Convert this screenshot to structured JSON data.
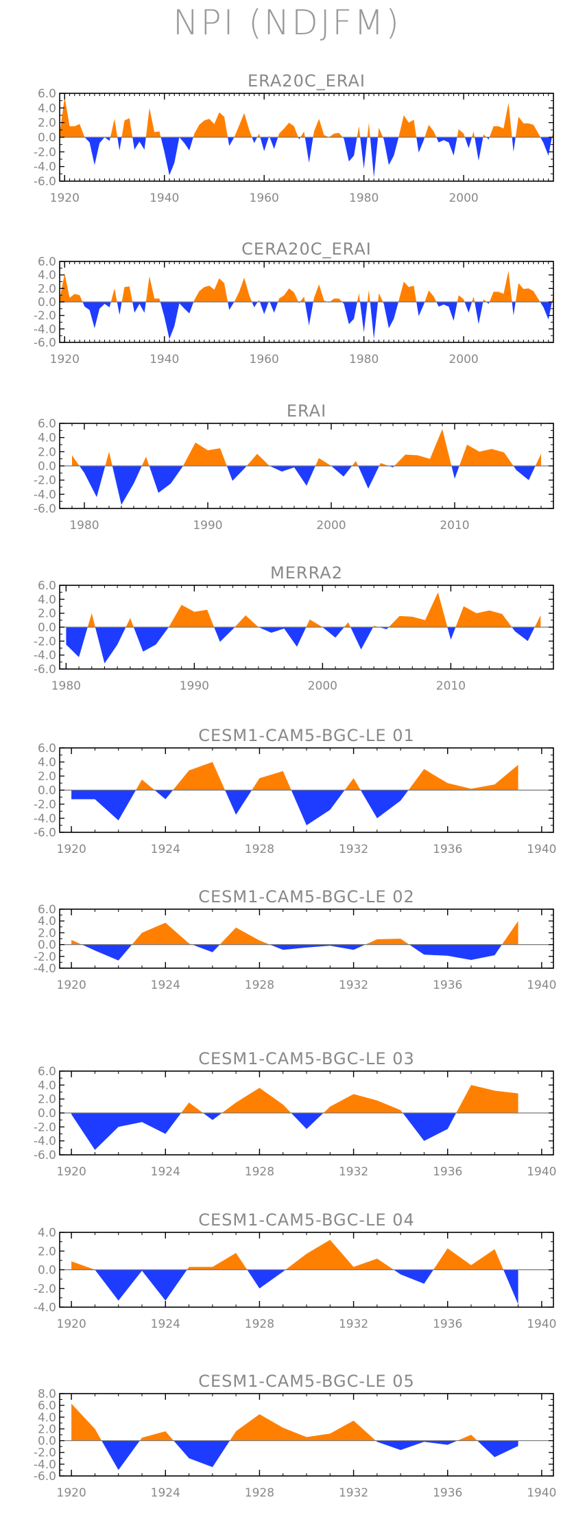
{
  "title": "NPI (NDJFM)",
  "colors": {
    "positive": "#ff8000",
    "negative": "#1e3cff",
    "axis": "#000000",
    "label": "#888888"
  },
  "chart_data": [
    {
      "type": "area",
      "title": "ERA20C_ERAI",
      "xlim": [
        1919,
        2018
      ],
      "ylim": [
        -6,
        6
      ],
      "xticks": [
        1920,
        1940,
        1960,
        1980,
        2000
      ],
      "yticks": [
        "6.0",
        "4.0",
        "2.0",
        "0.0",
        "-2.0",
        "-4.0",
        "-6.0"
      ],
      "x": [
        1919,
        1920,
        1921,
        1922,
        1923,
        1924,
        1925,
        1926,
        1927,
        1928,
        1929,
        1930,
        1931,
        1932,
        1933,
        1934,
        1935,
        1936,
        1937,
        1938,
        1939,
        1940,
        1941,
        1942,
        1943,
        1944,
        1945,
        1946,
        1947,
        1948,
        1949,
        1950,
        1951,
        1952,
        1953,
        1954,
        1955,
        1956,
        1957,
        1958,
        1959,
        1960,
        1961,
        1962,
        1963,
        1964,
        1965,
        1966,
        1967,
        1968,
        1969,
        1970,
        1971,
        1972,
        1973,
        1974,
        1975,
        1976,
        1977,
        1978,
        1979,
        1980,
        1981,
        1982,
        1983,
        1984,
        1985,
        1986,
        1987,
        1988,
        1989,
        1990,
        1991,
        1992,
        1993,
        1994,
        1995,
        1996,
        1997,
        1998,
        1999,
        2000,
        2001,
        2002,
        2003,
        2004,
        2005,
        2006,
        2007,
        2008,
        2009,
        2010,
        2011,
        2012,
        2013,
        2014,
        2015,
        2016,
        2017,
        2018
      ],
      "values": [
        0.5,
        5.5,
        1.5,
        1.5,
        1.8,
        0.0,
        -0.7,
        -3.8,
        -0.8,
        0.0,
        -0.5,
        2.5,
        -1.8,
        2.3,
        2.6,
        -1.7,
        -0.6,
        -1.7,
        4.0,
        0.7,
        0.8,
        -2.0,
        -5.2,
        -3.5,
        0.0,
        -0.8,
        -1.8,
        0.5,
        1.7,
        2.3,
        2.5,
        1.8,
        3.4,
        2.8,
        -1.2,
        0.0,
        1.6,
        3.3,
        1.0,
        -0.8,
        0.5,
        -1.9,
        0.2,
        -1.6,
        0.5,
        1.2,
        2.0,
        1.5,
        -0.3,
        0.8,
        -3.5,
        0.8,
        2.5,
        0.3,
        0.0,
        0.5,
        0.6,
        -0.2,
        -3.3,
        -2.5,
        1.5,
        -4.3,
        2.0,
        -5.5,
        1.3,
        -0.3,
        -3.8,
        -2.5,
        0.1,
        3.0,
        2.0,
        2.4,
        -2.1,
        -0.4,
        1.7,
        0.8,
        -0.7,
        -0.4,
        -0.7,
        -2.5,
        1.1,
        0.5,
        -1.5,
        0.8,
        -3.2,
        0.4,
        -0.3,
        1.5,
        1.5,
        1.2,
        4.7,
        -2.0,
        2.8,
        1.9,
        1.9,
        1.7,
        0.5,
        -0.8,
        -2.5,
        1.0
      ]
    },
    {
      "type": "area",
      "title": "CERA20C_ERAI",
      "xlim": [
        1919,
        2018
      ],
      "ylim": [
        -6,
        6
      ],
      "xticks": [
        1920,
        1940,
        1960,
        1980,
        2000
      ],
      "yticks": [
        "6.0",
        "4.0",
        "2.0",
        "0.0",
        "-2.0",
        "-4.0",
        "-6.0"
      ],
      "x": [
        1919,
        1920,
        1921,
        1922,
        1923,
        1924,
        1925,
        1926,
        1927,
        1928,
        1929,
        1930,
        1931,
        1932,
        1933,
        1934,
        1935,
        1936,
        1937,
        1938,
        1939,
        1940,
        1941,
        1942,
        1943,
        1944,
        1945,
        1946,
        1947,
        1948,
        1949,
        1950,
        1951,
        1952,
        1953,
        1954,
        1955,
        1956,
        1957,
        1958,
        1959,
        1960,
        1961,
        1962,
        1963,
        1964,
        1965,
        1966,
        1967,
        1968,
        1969,
        1970,
        1971,
        1972,
        1973,
        1974,
        1975,
        1976,
        1977,
        1978,
        1979,
        1980,
        1981,
        1982,
        1983,
        1984,
        1985,
        1986,
        1987,
        1988,
        1989,
        1990,
        1991,
        1992,
        1993,
        1994,
        1995,
        1996,
        1997,
        1998,
        1999,
        2000,
        2001,
        2002,
        2003,
        2004,
        2005,
        2006,
        2007,
        2008,
        2009,
        2010,
        2011,
        2012,
        2013,
        2014,
        2015,
        2016,
        2017,
        2018
      ],
      "values": [
        0.5,
        4.2,
        0.6,
        1.2,
        1.0,
        -0.7,
        -1.2,
        -3.9,
        -1.0,
        -0.3,
        -0.8,
        2.0,
        -1.9,
        2.2,
        2.3,
        -1.6,
        -0.3,
        -1.6,
        3.8,
        0.5,
        0.5,
        -2.2,
        -5.5,
        -3.6,
        -0.2,
        -1.0,
        -1.7,
        0.3,
        1.6,
        2.2,
        2.4,
        1.8,
        3.5,
        2.8,
        -1.2,
        0.0,
        1.5,
        3.6,
        1.0,
        -0.8,
        0.3,
        -1.8,
        0.2,
        -1.6,
        0.5,
        1.0,
        2.0,
        1.4,
        -0.2,
        0.8,
        -3.5,
        0.6,
        2.6,
        0.2,
        -0.1,
        0.5,
        0.5,
        -0.3,
        -3.3,
        -2.5,
        1.3,
        -4.5,
        1.8,
        -5.5,
        1.3,
        -0.3,
        -3.9,
        -2.5,
        0.2,
        3.0,
        2.2,
        2.4,
        -2.1,
        -0.4,
        1.7,
        0.8,
        -0.7,
        -0.4,
        -0.7,
        -2.8,
        1.0,
        0.4,
        -1.6,
        0.8,
        -3.3,
        0.4,
        -0.3,
        1.5,
        1.5,
        1.2,
        4.6,
        -2.0,
        2.8,
        1.9,
        2.0,
        1.6,
        0.4,
        -0.8,
        -2.6,
        1.0
      ]
    },
    {
      "type": "area",
      "title": "ERAI",
      "xlim": [
        1978,
        2018
      ],
      "ylim": [
        -6,
        6
      ],
      "xticks": [
        1980,
        1990,
        2000,
        2010
      ],
      "yticks": [
        "6.0",
        "4.0",
        "2.0",
        "0.0",
        "-2.0",
        "-4.0",
        "-6.0"
      ],
      "x": [
        1979,
        1980,
        1981,
        1982,
        1983,
        1984,
        1985,
        1986,
        1987,
        1988,
        1989,
        1990,
        1991,
        1992,
        1993,
        1994,
        1995,
        1996,
        1997,
        1998,
        1999,
        2000,
        2001,
        2002,
        2003,
        2004,
        2005,
        2006,
        2007,
        2008,
        2009,
        2010,
        2011,
        2012,
        2013,
        2014,
        2015,
        2016,
        2017
      ],
      "values": [
        1.5,
        -1.0,
        -4.4,
        2.0,
        -5.5,
        -2.5,
        1.3,
        -3.8,
        -2.5,
        0.0,
        3.3,
        2.2,
        2.5,
        -2.1,
        -0.3,
        1.7,
        0.0,
        -0.8,
        -0.2,
        -2.8,
        1.1,
        0.0,
        -1.5,
        0.7,
        -3.2,
        0.4,
        -0.2,
        1.6,
        1.5,
        1.0,
        5.2,
        -1.8,
        3.0,
        2.0,
        2.4,
        1.9,
        -0.6,
        -2.0,
        1.7
      ]
    },
    {
      "type": "area",
      "title": "MERRA2",
      "xlim": [
        1979.5,
        2018
      ],
      "ylim": [
        -6,
        6
      ],
      "xticks": [
        1980,
        1990,
        2000,
        2010
      ],
      "yticks": [
        "6.0",
        "4.0",
        "2.0",
        "0.0",
        "-2.0",
        "-4.0",
        "-6.0"
      ],
      "x": [
        1980,
        1981,
        1982,
        1983,
        1984,
        1985,
        1986,
        1987,
        1988,
        1989,
        1990,
        1991,
        1992,
        1993,
        1994,
        1995,
        1996,
        1997,
        1998,
        1999,
        2000,
        2001,
        2002,
        2003,
        2004,
        2005,
        2006,
        2007,
        2008,
        2009,
        2010,
        2011,
        2012,
        2013,
        2014,
        2015,
        2016,
        2017
      ],
      "values": [
        -2.5,
        -4.3,
        2.0,
        -5.2,
        -2.5,
        1.3,
        -3.5,
        -2.5,
        0.0,
        3.2,
        2.2,
        2.5,
        -2.1,
        -0.3,
        1.7,
        0.0,
        -0.8,
        -0.2,
        -2.8,
        1.1,
        0.0,
        -1.5,
        0.7,
        -3.2,
        0.2,
        -0.3,
        1.6,
        1.5,
        1.0,
        5.0,
        -1.8,
        3.0,
        2.0,
        2.4,
        1.9,
        -0.6,
        -2.0,
        1.7
      ]
    },
    {
      "type": "area",
      "title": "CESM1-CAM5-BGC-LE 01",
      "xlim": [
        1919.5,
        1940.5
      ],
      "ylim": [
        -6,
        6
      ],
      "xticks": [
        1920,
        1924,
        1928,
        1932,
        1936,
        1940
      ],
      "yticks": [
        "6.0",
        "4.0",
        "2.0",
        "0.0",
        "-2.0",
        "-4.0",
        "-6.0"
      ],
      "x": [
        1920,
        1921,
        1922,
        1923,
        1924,
        1925,
        1926,
        1927,
        1928,
        1929,
        1930,
        1931,
        1932,
        1933,
        1934,
        1935,
        1936,
        1937,
        1938,
        1939
      ],
      "values": [
        -1.3,
        -1.3,
        -4.3,
        1.5,
        -1.3,
        2.8,
        4.0,
        -3.5,
        1.7,
        2.7,
        -5.0,
        -2.8,
        1.7,
        -4.0,
        -1.5,
        3.0,
        1.0,
        0.2,
        0.8,
        3.6
      ]
    },
    {
      "type": "area",
      "title": "CESM1-CAM5-BGC-LE 02",
      "xlim": [
        1919.5,
        1940.5
      ],
      "ylim": [
        -4,
        6
      ],
      "xticks": [
        1920,
        1924,
        1928,
        1932,
        1936,
        1940
      ],
      "yticks": [
        "6.0",
        "4.0",
        "2.0",
        "0.0",
        "-2.0",
        "-4.0"
      ],
      "x": [
        1920,
        1921,
        1922,
        1923,
        1924,
        1925,
        1926,
        1927,
        1928,
        1929,
        1930,
        1931,
        1932,
        1933,
        1934,
        1935,
        1936,
        1937,
        1938,
        1939
      ],
      "values": [
        0.8,
        -1.0,
        -2.7,
        2.0,
        3.7,
        0.2,
        -1.3,
        2.9,
        0.7,
        -0.9,
        -0.5,
        -0.2,
        -0.9,
        0.9,
        1.0,
        -1.7,
        -1.9,
        -2.6,
        -1.8,
        4.0
      ]
    },
    {
      "type": "area",
      "title": "CESM1-CAM5-BGC-LE 03",
      "xlim": [
        1919.5,
        1940.5
      ],
      "ylim": [
        -6,
        6
      ],
      "xticks": [
        1920,
        1924,
        1928,
        1932,
        1936,
        1940
      ],
      "yticks": [
        "6.0",
        "4.0",
        "2.0",
        "0.0",
        "-2.0",
        "-4.0",
        "-6.0"
      ],
      "x": [
        1920,
        1921,
        1922,
        1923,
        1924,
        1925,
        1926,
        1927,
        1928,
        1929,
        1930,
        1931,
        1932,
        1933,
        1934,
        1935,
        1936,
        1937,
        1938,
        1939
      ],
      "values": [
        -0.2,
        -5.3,
        -2.0,
        -1.3,
        -3.0,
        1.5,
        -1.0,
        1.5,
        3.6,
        1.2,
        -2.3,
        0.9,
        2.7,
        1.8,
        0.4,
        -4.0,
        -2.3,
        4.0,
        3.2,
        2.8
      ]
    },
    {
      "type": "area",
      "title": "CESM1-CAM5-BGC-LE 04",
      "xlim": [
        1919.5,
        1940.5
      ],
      "ylim": [
        -4,
        4
      ],
      "xticks": [
        1920,
        1924,
        1928,
        1932,
        1936,
        1940
      ],
      "yticks": [
        "4.0",
        "2.0",
        "0.0",
        "-2.0",
        "-4.0"
      ],
      "x": [
        1920,
        1921,
        1922,
        1923,
        1924,
        1925,
        1926,
        1927,
        1928,
        1929,
        1930,
        1931,
        1932,
        1933,
        1934,
        1935,
        1936,
        1937,
        1938,
        1939
      ],
      "values": [
        0.9,
        0.0,
        -3.3,
        -0.1,
        -3.3,
        0.3,
        0.3,
        1.8,
        -2.0,
        -0.2,
        1.7,
        3.2,
        0.3,
        1.2,
        -0.5,
        -1.5,
        2.3,
        0.5,
        2.2,
        -3.7
      ]
    },
    {
      "type": "area",
      "title": "CESM1-CAM5-BGC-LE 05",
      "xlim": [
        1919.5,
        1940.5
      ],
      "ylim": [
        -6,
        8
      ],
      "xticks": [
        1920,
        1924,
        1928,
        1932,
        1936,
        1940
      ],
      "yticks": [
        "8.0",
        "6.0",
        "4.0",
        "2.0",
        "0.0",
        "-2.0",
        "-4.0",
        "-6.0"
      ],
      "x": [
        1920,
        1921,
        1922,
        1923,
        1924,
        1925,
        1926,
        1927,
        1928,
        1929,
        1930,
        1931,
        1932,
        1933,
        1934,
        1935,
        1936,
        1937,
        1938,
        1939
      ],
      "values": [
        6.3,
        2.0,
        -5.0,
        0.5,
        1.6,
        -3.0,
        -4.5,
        1.6,
        4.5,
        2.2,
        0.6,
        1.2,
        3.4,
        -0.2,
        -1.6,
        -0.2,
        -0.7,
        1.0,
        -2.8,
        -0.9
      ]
    }
  ]
}
